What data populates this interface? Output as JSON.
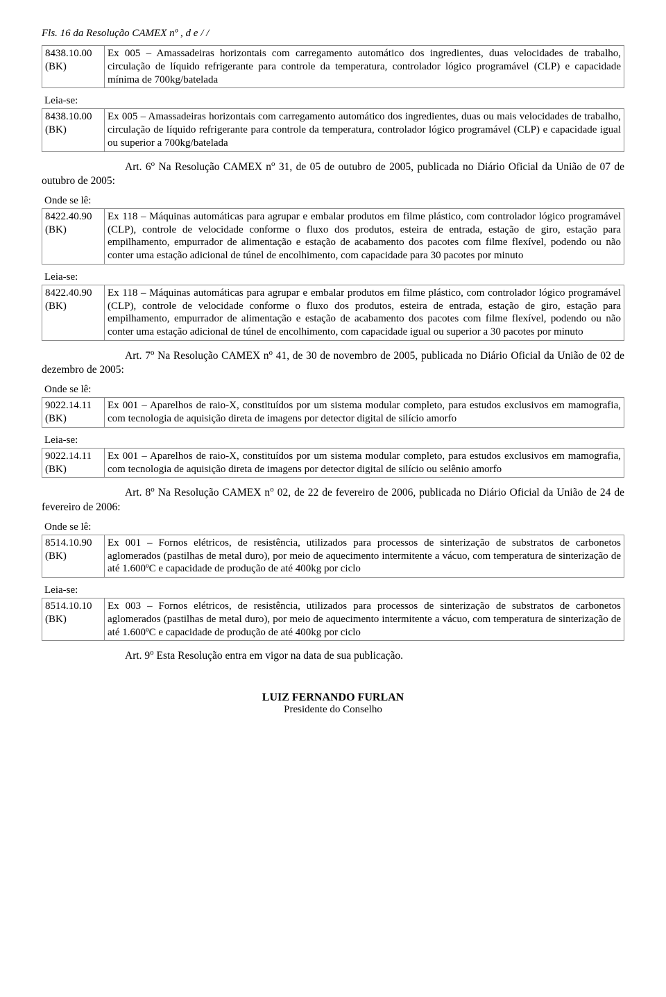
{
  "header": "Fls. 16 da Resolução CAMEX nº    , d  e    /    /",
  "blocks": [
    {
      "type": "table",
      "code": "8438.10.00",
      "subcode": "(BK)",
      "text": "Ex 005 – Amassadeiras horizontais com carregamento automático dos ingredientes, duas velocidades de trabalho, circulação de líquido refrigerante para controle da temperatura, controlador lógico programável (CLP) e capacidade mínima de 700kg/batelada"
    },
    {
      "type": "label",
      "text": "Leia-se:"
    },
    {
      "type": "table",
      "code": "8438.10.00",
      "subcode": "(BK)",
      "text": "Ex 005 – Amassadeiras horizontais com carregamento automático dos ingredientes, duas ou mais velocidades de trabalho, circulação de líquido refrigerante para controle da temperatura, controlador lógico programável (CLP) e capacidade igual ou superior a 700kg/batelada"
    },
    {
      "type": "article",
      "prefix": "Art. 6",
      "sup": "o",
      "mid": " Na Resolução CAMEX n",
      "sup2": "o",
      "rest": " 31, de 05 de outubro de 2005, publicada no Diário Oficial da União de 07 de outubro de 2005:"
    },
    {
      "type": "label",
      "text": "Onde se lê:"
    },
    {
      "type": "table",
      "code": "8422.40.90",
      "subcode": "(BK)",
      "text": "Ex 118 – Máquinas automáticas para agrupar e embalar produtos em filme plástico, com controlador lógico programável (CLP), controle de velocidade conforme o fluxo dos produtos, esteira de entrada, estação de giro, estação para empilhamento, empurrador de alimentação e estação de acabamento dos pacotes com filme flexível, podendo ou não conter uma estação adicional de túnel de encolhimento, com capacidade para 30 pacotes por minuto"
    },
    {
      "type": "label",
      "text": "Leia-se:"
    },
    {
      "type": "table",
      "code": "8422.40.90",
      "subcode": "(BK)",
      "text": "Ex 118 – Máquinas automáticas para agrupar e embalar produtos em filme plástico, com controlador lógico programável (CLP), controle de velocidade conforme o fluxo dos produtos, esteira de entrada, estação de giro, estação para empilhamento, empurrador de alimentação e estação de acabamento dos pacotes com filme flexível, podendo ou não conter uma estação adicional de túnel de encolhimento, com capacidade igual ou superior a 30 pacotes por minuto"
    },
    {
      "type": "article",
      "prefix": "Art. 7",
      "sup": "o",
      "mid": " Na Resolução CAMEX n",
      "sup2": "o",
      "rest": " 41, de 30 de novembro de 2005, publicada no Diário Oficial da União de 02 de dezembro de 2005:"
    },
    {
      "type": "label",
      "text": "Onde se lê:"
    },
    {
      "type": "table",
      "code": "9022.14.11",
      "subcode": "(BK)",
      "text": "Ex 001 – Aparelhos de raio-X, constituídos por um sistema modular completo, para estudos exclusivos em mamografia, com tecnologia de aquisição direta de imagens por detector digital de silício amorfo"
    },
    {
      "type": "label",
      "text": "Leia-se:"
    },
    {
      "type": "table",
      "code": "9022.14.11",
      "subcode": "(BK)",
      "text": "Ex 001 – Aparelhos de raio-X, constituídos por um sistema modular completo, para estudos exclusivos em mamografia, com tecnologia de aquisição direta de imagens por detector digital de silício ou selênio amorfo"
    },
    {
      "type": "article",
      "prefix": "Art. 8",
      "sup": "o",
      "mid": " Na Resolução CAMEX n",
      "sup2": "o",
      "rest": " 02, de 22 de fevereiro de 2006, publicada no Diário Oficial da União de 24 de fevereiro de 2006:"
    },
    {
      "type": "label",
      "text": "Onde se lê:"
    },
    {
      "type": "table",
      "code": "8514.10.90",
      "subcode": "(BK)",
      "text": "Ex 001 – Fornos elétricos, de resistência, utilizados para processos de sinterização de substratos de carbonetos aglomerados (pastilhas de metal duro), por meio de aquecimento intermitente a vácuo, com temperatura de sinterização de até 1.600ºC e capacidade de produção de até 400kg por ciclo"
    },
    {
      "type": "label",
      "text": "Leia-se:"
    },
    {
      "type": "table",
      "code": "8514.10.10",
      "subcode": "(BK)",
      "text": "Ex 003 – Fornos elétricos, de resistência, utilizados para processos de sinterização de substratos de carbonetos aglomerados (pastilhas de metal duro), por meio de aquecimento intermitente a vácuo, com temperatura de sinterização de até 1.600ºC e capacidade de produção de até 400kg por ciclo"
    },
    {
      "type": "article-simple",
      "prefix": "Art. 9",
      "sup": "o",
      "rest": " Esta Resolução entra em vigor na data de sua publicação."
    }
  ],
  "signature": {
    "name": "LUIZ FERNANDO FURLAN",
    "title": "Presidente do Conselho"
  }
}
